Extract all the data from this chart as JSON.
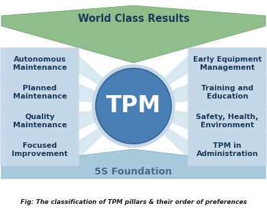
{
  "title": "TPM",
  "fig_caption": "Fig: The classification of TPM pillars & their order of preferences",
  "top_label": "World Class Results",
  "bottom_label": "5S Foundation",
  "left_boxes": [
    "Autonomous\nMaintenance",
    "Planned\nMaintenance",
    "Quality\nMaintenance",
    "Focused\nImprovement"
  ],
  "right_boxes": [
    "Early Equipment\nManagement",
    "Training and\nEducation",
    "Safety, Health,\nEnvironment",
    "TPM in\nAdministration"
  ],
  "bg_color": "#ffffff",
  "top_shape_color": "#8fbd8b",
  "top_shape_edge_color": "#6a9e66",
  "bottom_shape_color": "#a8c8dc",
  "bottom_shape_edge_color": "#7aafc8",
  "left_box_color": "#c5d8e8",
  "right_box_color": "#c5d8e8",
  "spoke_color": "#d8e8f0",
  "circle_color": "#4a7fb5",
  "circle_edge_color": "#3a6a9a",
  "tpm_text_color": "#ffffff",
  "box_text_color": "#1a3a5a",
  "top_text_color": "#1a3a5a",
  "bottom_text_color": "#4a6a8a",
  "caption_color": "#1a1a1a"
}
